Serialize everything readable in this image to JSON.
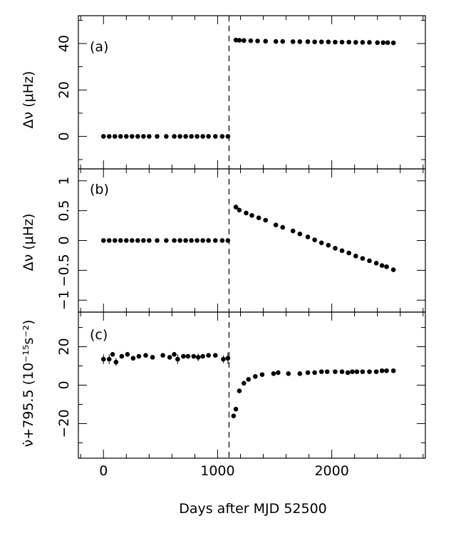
{
  "chart_data": {
    "type": "scatter",
    "xlabel": "Days after MJD 52500",
    "xlim": [
      -220,
      2820
    ],
    "x_ticks": [
      0,
      1000,
      2000
    ],
    "x_tick_labels": [
      "0",
      "1000",
      "2000"
    ],
    "glitch_day": 1100,
    "panels": [
      {
        "label": "(a)",
        "ylabel": "Δν (μHz)",
        "ylim": [
          -14,
          52
        ],
        "y_ticks": [
          0,
          20,
          40
        ],
        "y_tick_labels": [
          "0",
          "20",
          "40"
        ],
        "y_minor_ticks": [
          -10,
          10,
          30,
          50
        ],
        "points": [
          [
            0,
            0
          ],
          [
            50,
            0
          ],
          [
            100,
            0
          ],
          [
            150,
            0
          ],
          [
            200,
            0
          ],
          [
            250,
            0
          ],
          [
            300,
            0
          ],
          [
            350,
            0
          ],
          [
            400,
            0
          ],
          [
            470,
            0
          ],
          [
            550,
            0
          ],
          [
            620,
            0
          ],
          [
            670,
            0
          ],
          [
            720,
            0
          ],
          [
            770,
            0
          ],
          [
            820,
            0
          ],
          [
            870,
            0
          ],
          [
            920,
            0
          ],
          [
            980,
            0
          ],
          [
            1040,
            0
          ],
          [
            1090,
            0
          ],
          [
            1160,
            41.5
          ],
          [
            1190,
            41.4
          ],
          [
            1230,
            41.3
          ],
          [
            1290,
            41.2
          ],
          [
            1350,
            41.1
          ],
          [
            1420,
            41.0
          ],
          [
            1510,
            40.9
          ],
          [
            1570,
            40.9
          ],
          [
            1660,
            40.8
          ],
          [
            1720,
            40.8
          ],
          [
            1790,
            40.8
          ],
          [
            1850,
            40.7
          ],
          [
            1910,
            40.7
          ],
          [
            1970,
            40.7
          ],
          [
            2030,
            40.6
          ],
          [
            2090,
            40.6
          ],
          [
            2150,
            40.6
          ],
          [
            2210,
            40.5
          ],
          [
            2270,
            40.5
          ],
          [
            2330,
            40.5
          ],
          [
            2400,
            40.4
          ],
          [
            2450,
            40.4
          ],
          [
            2490,
            40.4
          ],
          [
            2540,
            40.3
          ]
        ]
      },
      {
        "label": "(b)",
        "ylabel": "Δν (μHz)",
        "ylim": [
          -1.2,
          1.2
        ],
        "y_ticks": [
          -1,
          -0.5,
          0,
          0.5,
          1
        ],
        "y_tick_labels": [
          "−1",
          "−0.5",
          "0",
          "0.5",
          "1"
        ],
        "y_minor_ticks": [],
        "points": [
          [
            0,
            0
          ],
          [
            50,
            0
          ],
          [
            100,
            0
          ],
          [
            150,
            0
          ],
          [
            200,
            0
          ],
          [
            250,
            0
          ],
          [
            300,
            0
          ],
          [
            350,
            0
          ],
          [
            400,
            0
          ],
          [
            470,
            0
          ],
          [
            550,
            0
          ],
          [
            620,
            0
          ],
          [
            670,
            0
          ],
          [
            720,
            0
          ],
          [
            770,
            0
          ],
          [
            820,
            0
          ],
          [
            870,
            0
          ],
          [
            920,
            0
          ],
          [
            980,
            0
          ],
          [
            1040,
            0
          ],
          [
            1090,
            0
          ],
          [
            1160,
            0.56
          ],
          [
            1190,
            0.51
          ],
          [
            1250,
            0.46
          ],
          [
            1300,
            0.42
          ],
          [
            1360,
            0.38
          ],
          [
            1420,
            0.34
          ],
          [
            1510,
            0.26
          ],
          [
            1570,
            0.22
          ],
          [
            1660,
            0.16
          ],
          [
            1720,
            0.11
          ],
          [
            1790,
            0.06
          ],
          [
            1850,
            0.01
          ],
          [
            1910,
            -0.04
          ],
          [
            1970,
            -0.08
          ],
          [
            2030,
            -0.13
          ],
          [
            2090,
            -0.17
          ],
          [
            2150,
            -0.21
          ],
          [
            2210,
            -0.26
          ],
          [
            2270,
            -0.3
          ],
          [
            2330,
            -0.34
          ],
          [
            2390,
            -0.38
          ],
          [
            2440,
            -0.42
          ],
          [
            2480,
            -0.44
          ],
          [
            2540,
            -0.49
          ]
        ]
      },
      {
        "label": "(c)",
        "ylabel": "ν̇+795.5 (10⁻¹⁵s⁻²)",
        "ylim": [
          -38,
          38
        ],
        "y_ticks": [
          -20,
          0,
          20
        ],
        "y_tick_labels": [
          "−20",
          "0",
          "20"
        ],
        "y_minor_ticks": [
          -30,
          -10,
          10,
          30
        ],
        "points": [
          [
            0,
            13.5,
            2.5
          ],
          [
            50,
            13.5,
            2.5
          ],
          [
            80,
            16,
            0
          ],
          [
            110,
            12,
            2
          ],
          [
            160,
            15,
            0
          ],
          [
            210,
            16,
            0
          ],
          [
            260,
            14,
            0
          ],
          [
            310,
            15,
            0
          ],
          [
            370,
            15.5,
            0
          ],
          [
            430,
            14.5,
            0
          ],
          [
            520,
            15.5,
            0
          ],
          [
            580,
            14.5,
            0
          ],
          [
            620,
            16,
            0
          ],
          [
            650,
            13.5,
            2.5
          ],
          [
            700,
            15,
            0
          ],
          [
            740,
            15,
            0
          ],
          [
            790,
            15,
            0
          ],
          [
            830,
            14.5,
            2
          ],
          [
            870,
            15,
            0
          ],
          [
            920,
            15.5,
            0
          ],
          [
            980,
            15.5,
            0
          ],
          [
            1050,
            13.5,
            2
          ],
          [
            1090,
            14,
            3
          ],
          [
            1140,
            -16,
            0
          ],
          [
            1160,
            -12.5,
            0
          ],
          [
            1190,
            -3,
            0
          ],
          [
            1230,
            1,
            0
          ],
          [
            1270,
            3,
            0
          ],
          [
            1330,
            4.5,
            0
          ],
          [
            1390,
            5.5,
            0
          ],
          [
            1490,
            6,
            0
          ],
          [
            1530,
            6.5,
            0
          ],
          [
            1620,
            6,
            0
          ],
          [
            1720,
            6,
            0
          ],
          [
            1790,
            6.5,
            0
          ],
          [
            1850,
            6.5,
            0
          ],
          [
            1910,
            7,
            0
          ],
          [
            1960,
            7,
            0
          ],
          [
            2030,
            7,
            0
          ],
          [
            2090,
            7,
            0
          ],
          [
            2140,
            6.5,
            0
          ],
          [
            2180,
            7,
            0
          ],
          [
            2220,
            7,
            0
          ],
          [
            2270,
            7,
            0
          ],
          [
            2330,
            7,
            0
          ],
          [
            2390,
            7,
            0
          ],
          [
            2440,
            7.5,
            0
          ],
          [
            2480,
            7.5,
            0
          ],
          [
            2540,
            7.5,
            0
          ]
        ]
      }
    ]
  }
}
